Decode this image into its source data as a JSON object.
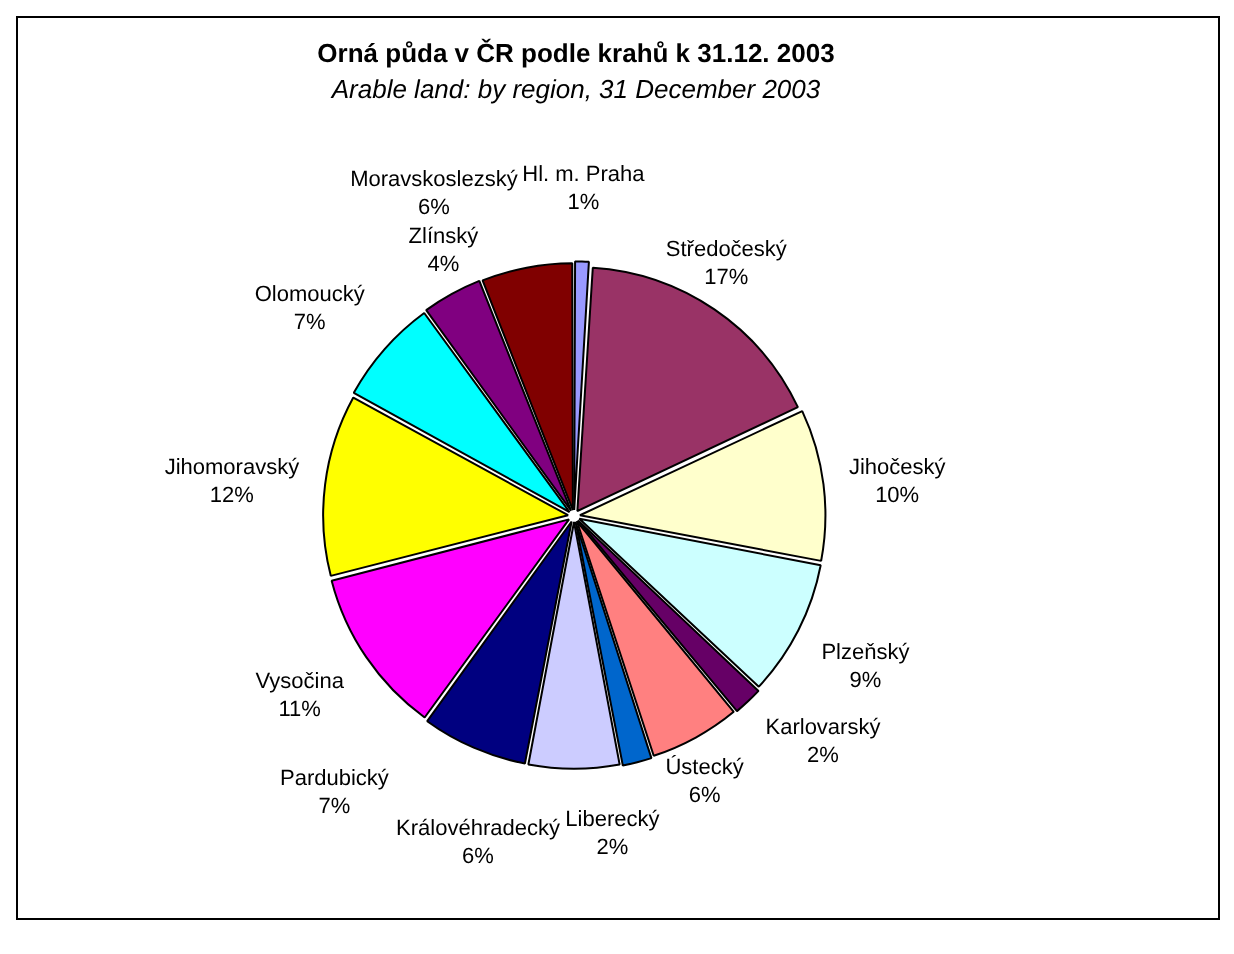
{
  "chart_data": {
    "type": "pie",
    "title": "Orná půda v ČR podle krahů k 31.12. 2003",
    "subtitle": "Arable land: by region, 31 December 2003",
    "categories": [
      "Hl. m. Praha",
      "Středočeský",
      "Jihočeský",
      "Plzeňský",
      "Karlovarský",
      "Ústecký",
      "Liberecký",
      "Královéhradecký",
      "Pardubický",
      "Vysočina",
      "Jihomoravský",
      "Olomoucký",
      "Zlínský",
      "Moravskoslezský"
    ],
    "values": [
      1,
      17,
      10,
      9,
      2,
      6,
      2,
      6,
      7,
      11,
      12,
      7,
      4,
      6
    ],
    "value_labels": [
      "1%",
      "17%",
      "10%",
      "9%",
      "2%",
      "6%",
      "2%",
      "6%",
      "7%",
      "11%",
      "12%",
      "7%",
      "4%",
      "6%"
    ],
    "colors": [
      "#9999ff",
      "#993366",
      "#ffffcc",
      "#ccffff",
      "#660066",
      "#ff8080",
      "#0066cc",
      "#ccccff",
      "#000080",
      "#ff00ff",
      "#ffff00",
      "#00ffff",
      "#800080",
      "#800000"
    ],
    "legend": false
  }
}
